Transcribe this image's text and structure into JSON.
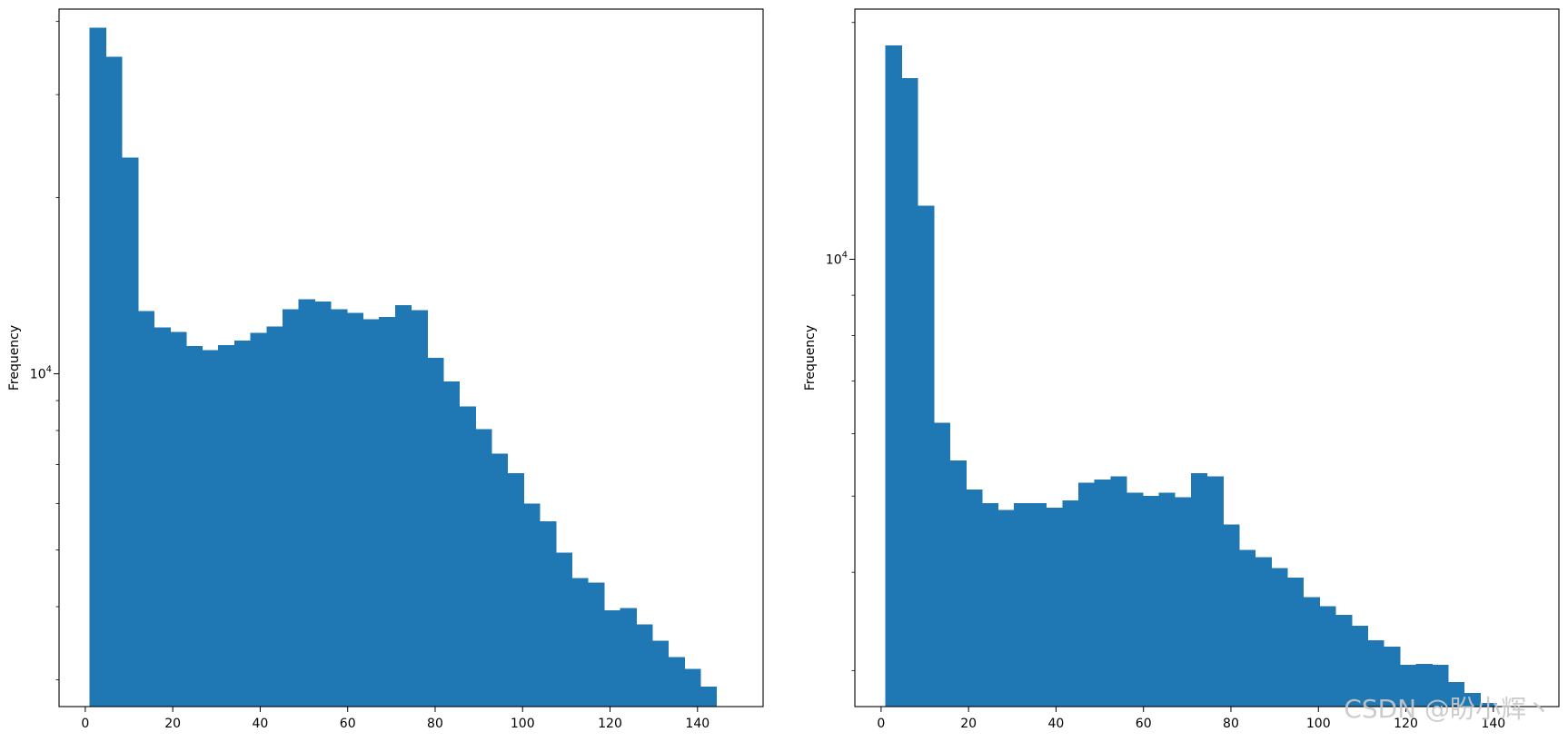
{
  "chart_data": [
    {
      "type": "bar",
      "yscale": "log",
      "xlabel": "",
      "ylabel": "Frequency",
      "xlim": [
        -6,
        155
      ],
      "ylim": [
        2700,
        42000
      ],
      "xticks": [
        0,
        20,
        40,
        60,
        80,
        100,
        120,
        140
      ],
      "ytick_label_base": "10",
      "ytick_label_exp": "4",
      "ytick_value": 10000,
      "bin_edges": [
        1.0,
        4.675,
        8.35,
        12.025,
        15.7,
        19.375,
        23.05,
        26.725,
        30.4,
        34.075,
        37.75,
        41.425,
        45.1,
        48.775,
        52.45,
        56.125,
        59.8,
        63.475,
        67.15,
        70.825,
        74.5,
        78.175,
        81.85,
        85.525,
        89.2,
        92.875,
        96.55,
        100.225,
        103.9,
        107.575,
        111.25,
        114.925,
        118.6,
        122.275,
        125.95,
        129.625,
        133.3,
        136.975,
        140.65,
        144.325,
        148.0
      ],
      "values": [
        39000,
        34800,
        23400,
        12800,
        12000,
        11800,
        11150,
        10980,
        11200,
        11400,
        11750,
        12050,
        12900,
        13400,
        13300,
        12900,
        12700,
        12400,
        12500,
        13100,
        12850,
        10650,
        9700,
        8800,
        8050,
        7300,
        6760,
        6000,
        5600,
        4950,
        4480,
        4400,
        3940,
        3980,
        3730,
        3500,
        3280,
        3130,
        2920,
        2410
      ],
      "grid": false,
      "legend": null,
      "color": "#1f77b4"
    },
    {
      "type": "bar",
      "yscale": "log",
      "xlabel": "",
      "ylabel": "Frequency",
      "xlim": [
        -6,
        155
      ],
      "ylim": [
        2700,
        20800
      ],
      "xticks": [
        0,
        20,
        40,
        60,
        80,
        100,
        120,
        140
      ],
      "ytick_label_base": "10",
      "ytick_label_exp": "4",
      "ytick_value": 10000,
      "bin_edges": [
        1.0,
        4.675,
        8.35,
        12.025,
        15.7,
        19.375,
        23.05,
        26.725,
        30.4,
        34.075,
        37.75,
        41.425,
        45.1,
        48.775,
        52.45,
        56.125,
        59.8,
        63.475,
        67.15,
        70.825,
        74.5,
        78.175,
        81.85,
        85.525,
        89.2,
        92.875,
        96.55,
        100.225,
        103.9,
        107.575,
        111.25,
        114.925,
        118.6,
        122.275,
        125.95,
        129.625,
        133.3,
        136.975,
        140.65,
        144.325,
        148.0
      ],
      "values": [
        18700,
        17000,
        11700,
        6200,
        5550,
        5100,
        4900,
        4800,
        4900,
        4900,
        4830,
        4940,
        5200,
        5250,
        5300,
        5050,
        5000,
        5050,
        4980,
        5350,
        5300,
        4600,
        4270,
        4180,
        4050,
        3940,
        3720,
        3620,
        3530,
        3420,
        3280,
        3220,
        3050,
        3060,
        3050,
        2900,
        2810,
        2730,
        2690,
        2620
      ],
      "grid": false,
      "legend": null,
      "color": "#1f77b4"
    }
  ],
  "watermark": "CSDN @盼小辉丶"
}
